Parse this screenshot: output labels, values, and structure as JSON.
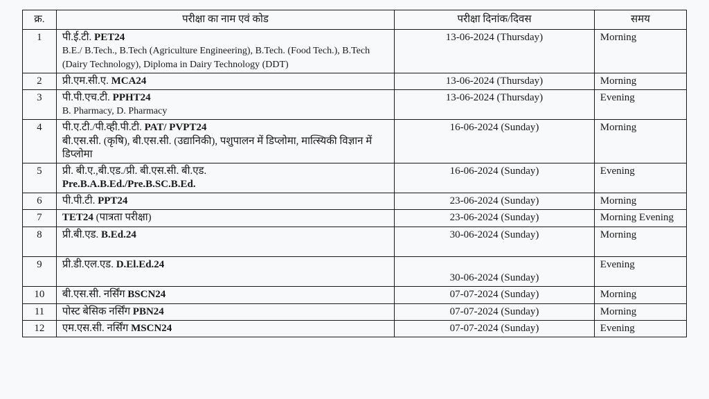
{
  "headers": {
    "sn": "क्र.",
    "name": "परीक्षा का नाम एवं कोड",
    "date": "परीक्षा दिनांक/दिवस",
    "time": "समय"
  },
  "rows": [
    {
      "sn": "1",
      "name_hi": "पी.ई.टी.",
      "name_code": "PET24",
      "name_sub": "B.E./  B.Tech., B.Tech (Agriculture Engineering), B.Tech. (Food Tech.),  B.Tech (Dairy Technology), Diploma in Dairy Technology (DDT)",
      "date": "13-06-2024 (Thursday)",
      "time": "Morning"
    },
    {
      "sn": "2",
      "name_hi": "प्री.एम.सी.ए.",
      "name_code": "MCA24",
      "name_sub": "",
      "date": "13-06-2024 (Thursday)",
      "time": "Morning"
    },
    {
      "sn": "3",
      "name_hi": "पी.पी.एच.टी.",
      "name_code": "PPHT24",
      "name_sub": "B. Pharmacy, D. Pharmacy",
      "date": "13-06-2024 (Thursday)",
      "time": "Evening"
    },
    {
      "sn": "4",
      "name_hi": "पी.ए.टी./पी.व्ही.पी.टी.",
      "name_code": "PAT/ PVPT24",
      "name_sub_hi": "बी.एस.सी. (कृषि), बी.एस.सी. (उद्यानिकी), पशुपालन में डिप्लोमा, मात्स्यिकी विज्ञान में डिप्लोमा",
      "date": "16-06-2024 (Sunday)",
      "time": "Morning"
    },
    {
      "sn": "5",
      "name_hi": "प्री. बी.ए.,बी.एड./प्री. बी.एस.सी. बी.एड.",
      "name_code": "",
      "name_sub_bold": "Pre.B.A.B.Ed./Pre.B.SC.B.Ed.",
      "date": "16-06-2024 (Sunday)",
      "time": "Evening"
    },
    {
      "sn": "6",
      "name_hi": "पी.पी.टी.",
      "name_code": "PPT24",
      "name_sub": "",
      "date": "23-06-2024  (Sunday)",
      "time": "Morning"
    },
    {
      "sn": "7",
      "name_code": "TET24",
      "name_hi_after": "(पात्रता परीक्षा)",
      "date": "23-06-2024  (Sunday)",
      "time": "Morning Evening"
    },
    {
      "sn": "8",
      "name_hi": "प्री.बी.एड.",
      "name_code": "B.Ed.24",
      "blank_line_after": true,
      "date": "30-06-2024 (Sunday)",
      "time": "Morning"
    },
    {
      "sn": "9",
      "name_hi": "प्री.डी.एल.एड.",
      "name_code": "D.El.Ed.24",
      "date_blank_first": true,
      "date": "30-06-2024 (Sunday)",
      "time": "Evening"
    },
    {
      "sn": "10",
      "name_hi": "बी.एस.सी. नर्सिंग",
      "name_code": "BSCN24",
      "date": "07-07-2024 (Sunday)",
      "time": "Morning"
    },
    {
      "sn": "11",
      "name_hi": "पोस्ट बेसिक नर्सिंग",
      "name_code": "PBN24",
      "date": "07-07-2024 (Sunday)",
      "time": "Morning"
    },
    {
      "sn": "12",
      "name_hi": "एम.एस.सी. नर्सिंग",
      "name_code": "MSCN24",
      "date": "07-07-2024 (Sunday)",
      "time": "Evening"
    }
  ]
}
